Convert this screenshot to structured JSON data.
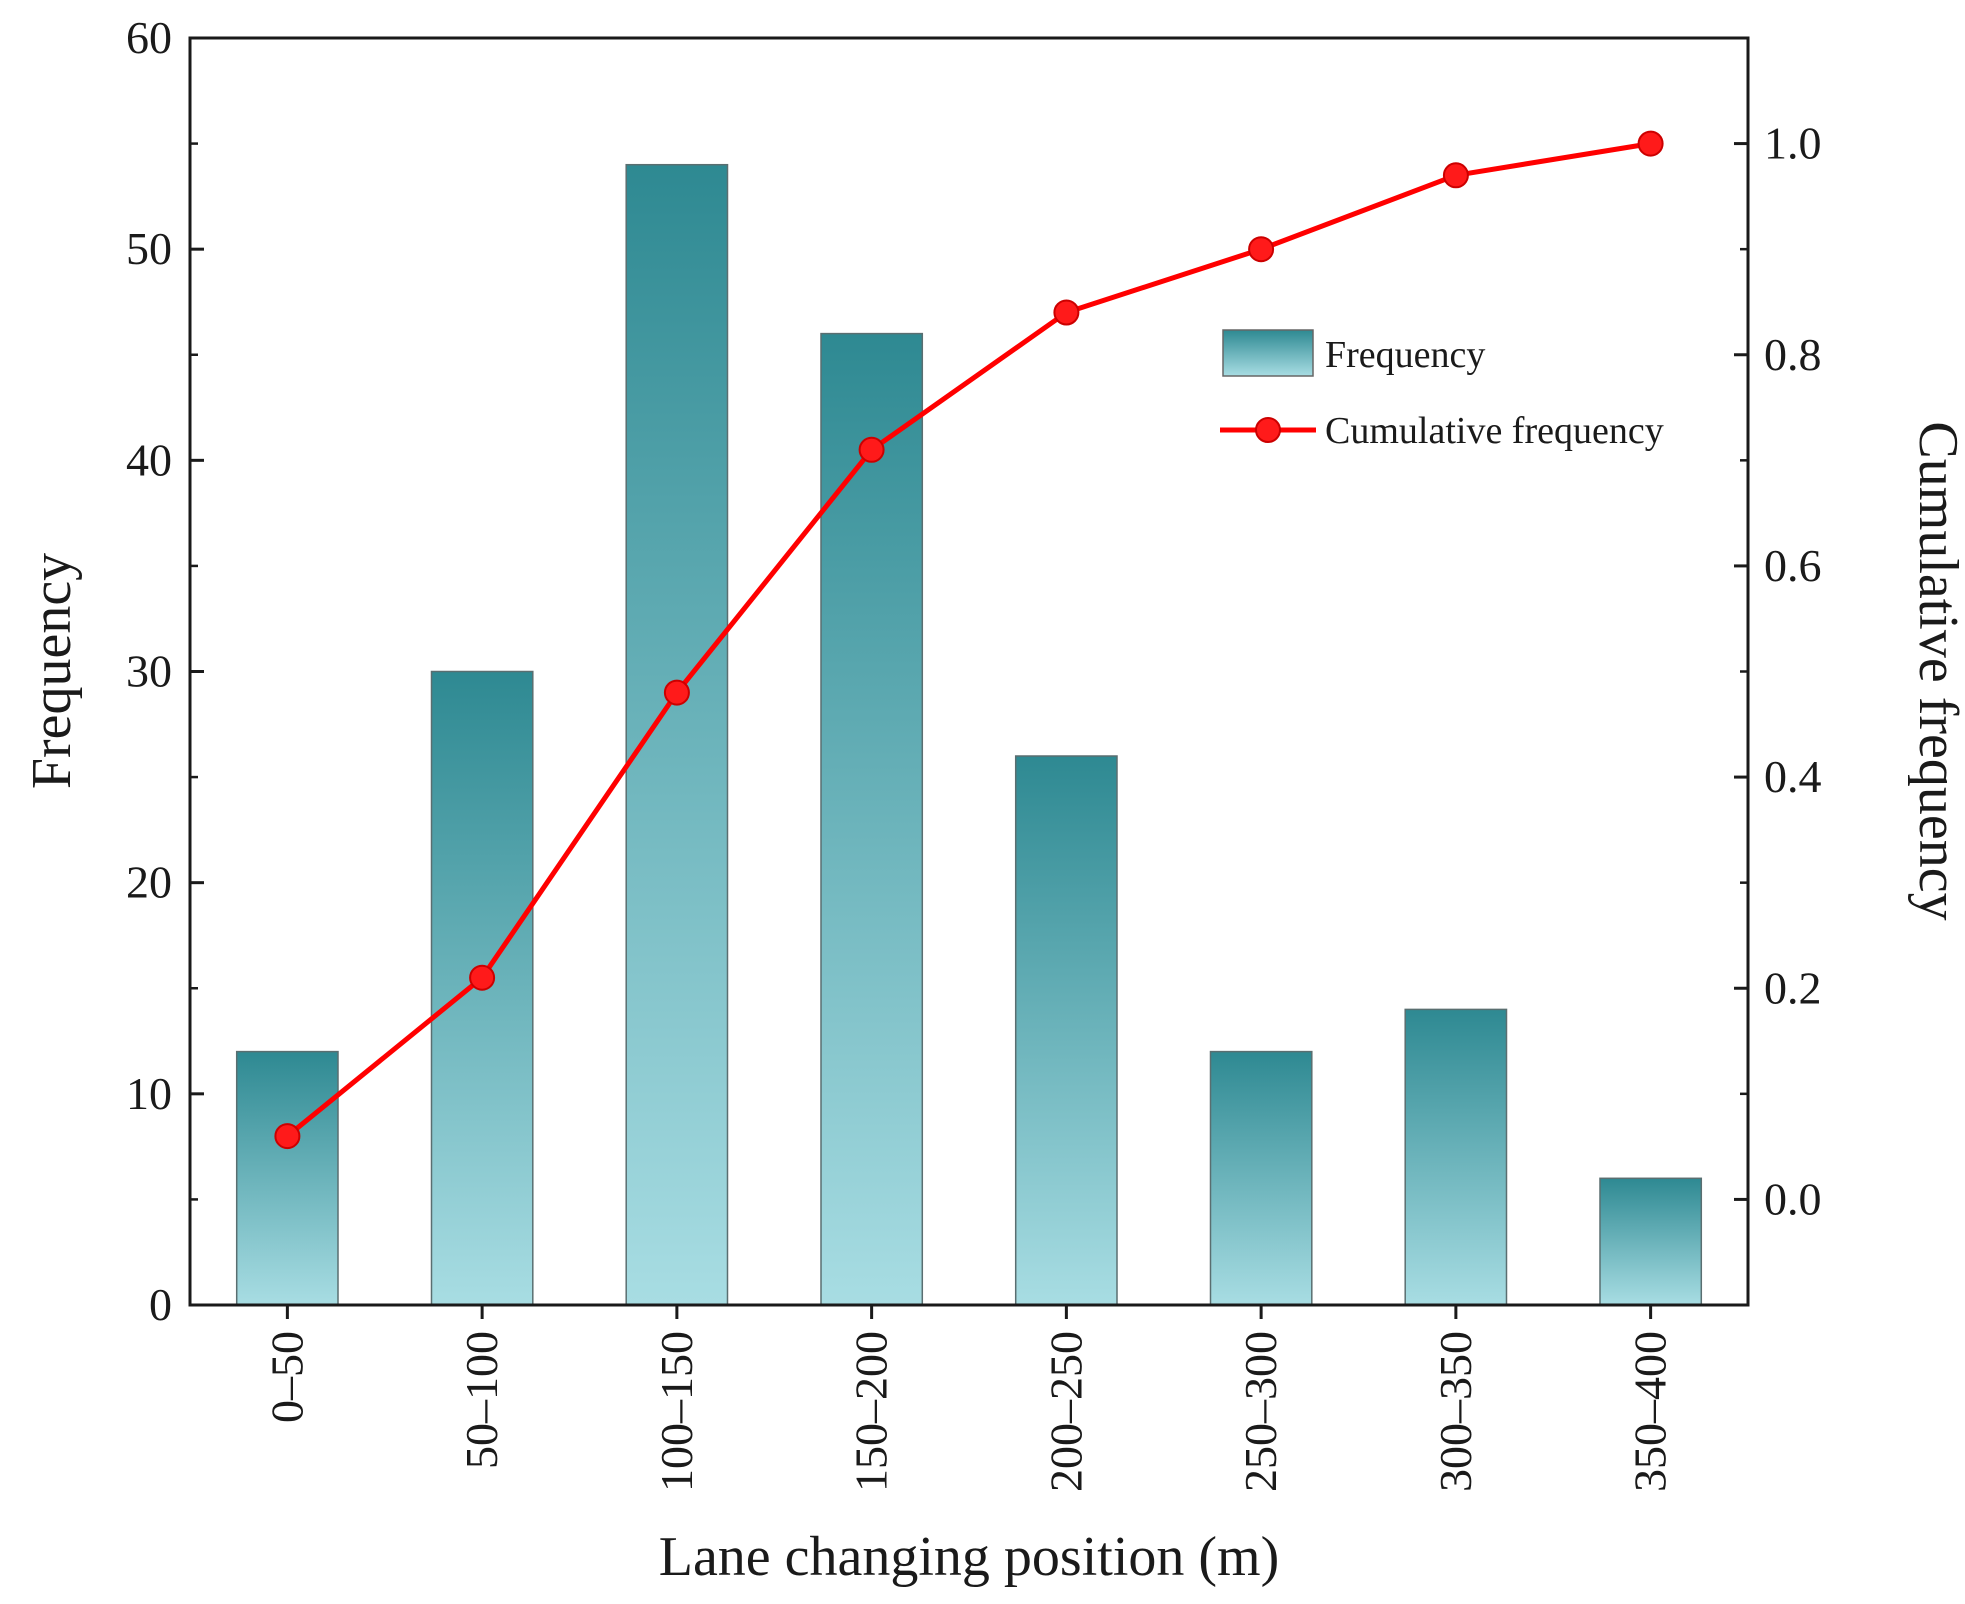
{
  "chart_data": {
    "type": "bar",
    "categories": [
      "0–50",
      "50–100",
      "100–150",
      "150–200",
      "200–250",
      "250–300",
      "300–350",
      "350–400"
    ],
    "series": [
      {
        "name": "Frequency",
        "kind": "bar",
        "axis": "left",
        "values": [
          12,
          30,
          54,
          46,
          26,
          12,
          14,
          6
        ],
        "color_top": "#2e8992",
        "color_bottom": "#a8dde3"
      },
      {
        "name": "Cumulative frequency",
        "kind": "line",
        "axis": "right",
        "values": [
          0.06,
          0.21,
          0.48,
          0.71,
          0.84,
          0.9,
          0.97,
          1.0
        ],
        "color": "#ff0000"
      }
    ],
    "xlabel": "Lane changing position (m)",
    "ylabel": "Frequency",
    "y2label": "Cumulative frequency",
    "ylim": [
      0,
      60
    ],
    "y2lim": [
      -0.1,
      1.1
    ],
    "yticks": [
      "0",
      "10",
      "20",
      "30",
      "40",
      "50",
      "60"
    ],
    "y2ticks": [
      "0.0",
      "0.2",
      "0.4",
      "0.6",
      "0.8",
      "1.0"
    ],
    "legend_position": "upper-right-inside",
    "grid": false
  }
}
